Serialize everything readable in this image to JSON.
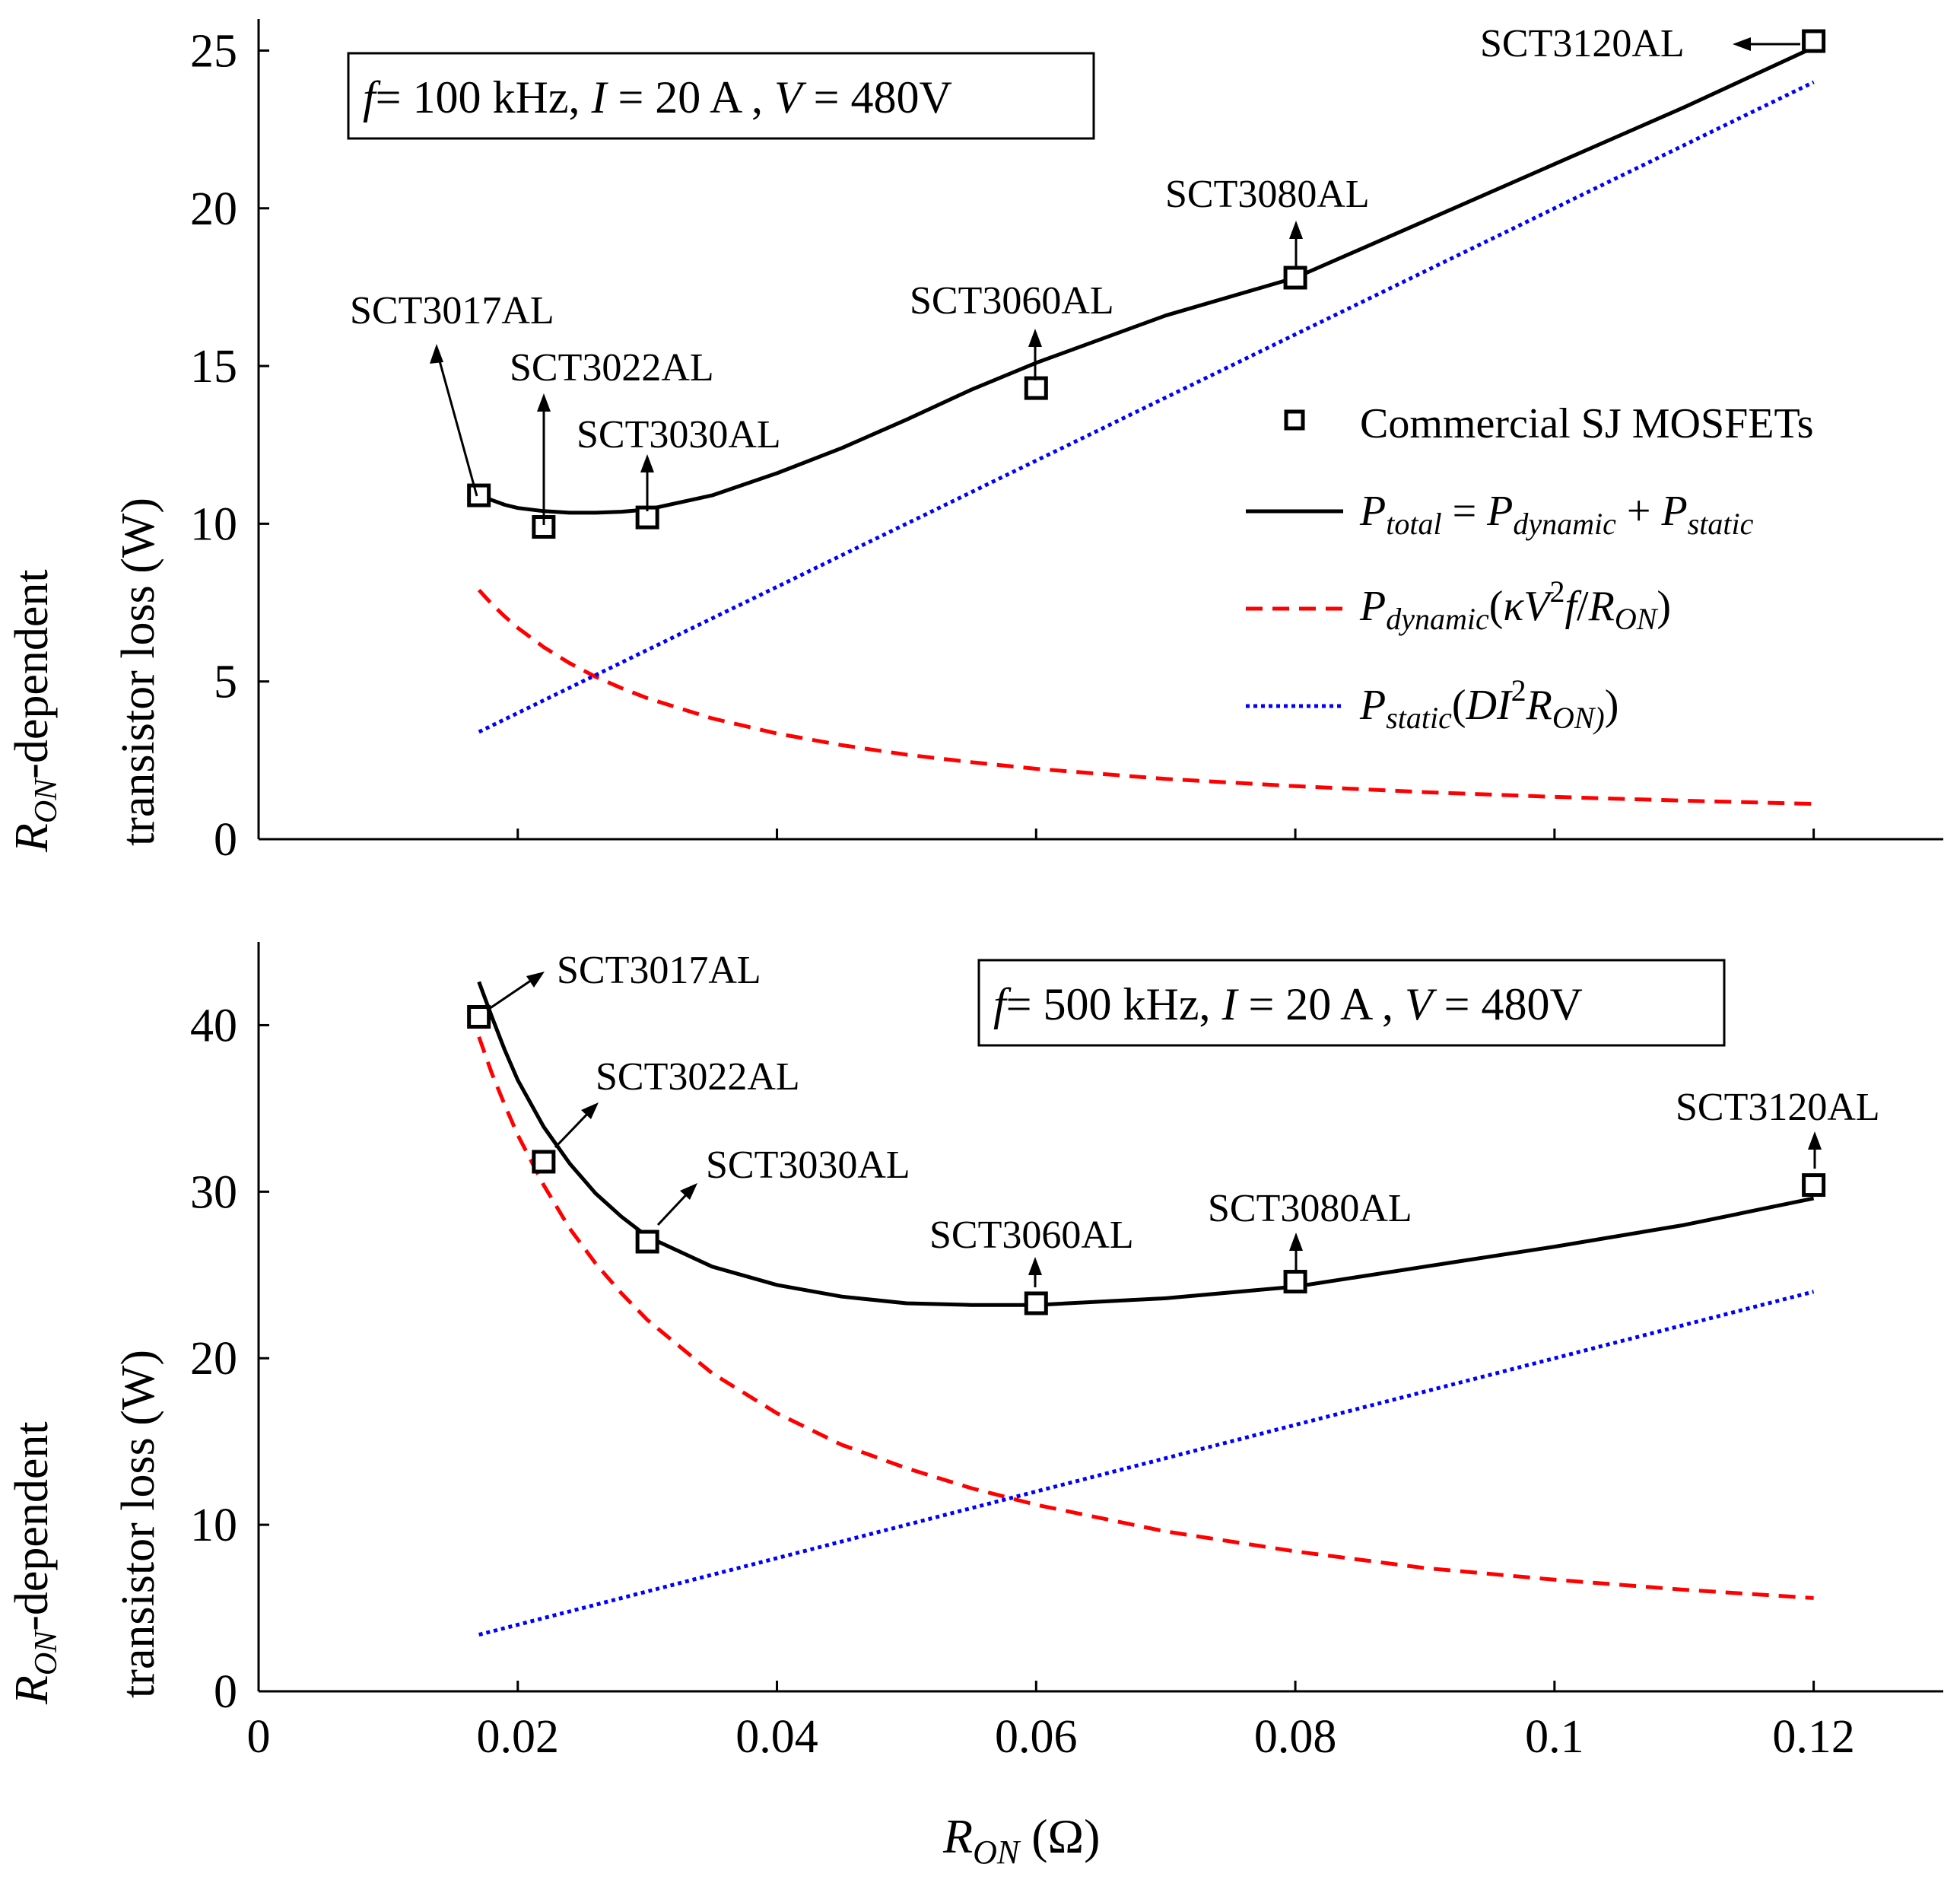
{
  "chart_data": [
    {
      "type": "line",
      "panel": "top",
      "conditions": {
        "f_sym": "f",
        "f_val": "= 100 kHz, ",
        "i_sym": "I",
        "i_val": " = 20 A , ",
        "v_sym": "V",
        "v_val": " = 480V"
      },
      "ylabel": {
        "main": "R",
        "sub": "ON",
        "rest": "-dependent",
        "line2": "transistor loss (W)"
      },
      "xlim": [
        0,
        0.13
      ],
      "ylim": [
        0,
        26
      ],
      "yticks": [
        0,
        5,
        10,
        15,
        20,
        25
      ],
      "xticks": [
        0,
        0.02,
        0.04,
        0.06,
        0.08,
        0.1,
        0.12
      ],
      "series": [
        {
          "name": "P_total = P_dynamic + P_static",
          "x": [
            0.017,
            0.018,
            0.019,
            0.02,
            0.022,
            0.024,
            0.026,
            0.028,
            0.03,
            0.035,
            0.04,
            0.045,
            0.05,
            0.055,
            0.06,
            0.07,
            0.08,
            0.09,
            0.1,
            0.11,
            0.12
          ],
          "y": [
            10.9,
            10.75,
            10.6,
            10.5,
            10.4,
            10.35,
            10.35,
            10.38,
            10.45,
            10.9,
            11.6,
            12.4,
            13.3,
            14.25,
            15.1,
            16.6,
            17.8,
            19.6,
            21.4,
            23.2,
            25.1
          ]
        },
        {
          "name": "P_dynamic",
          "x": [
            0.017,
            0.018,
            0.019,
            0.02,
            0.022,
            0.024,
            0.026,
            0.028,
            0.03,
            0.035,
            0.04,
            0.045,
            0.05,
            0.055,
            0.06,
            0.07,
            0.08,
            0.09,
            0.1,
            0.11,
            0.12
          ],
          "y": [
            7.9,
            7.45,
            7.06,
            6.7,
            6.09,
            5.58,
            5.15,
            4.79,
            4.47,
            3.83,
            3.35,
            2.98,
            2.68,
            2.44,
            2.23,
            1.91,
            1.68,
            1.49,
            1.34,
            1.22,
            1.12
          ]
        },
        {
          "name": "P_static",
          "x": [
            0.017,
            0.12
          ],
          "y": [
            3.4,
            24.0
          ]
        }
      ],
      "markers": [
        {
          "label": "SCT3017AL",
          "x": 0.017,
          "y": 10.9
        },
        {
          "label": "SCT3022AL",
          "x": 0.022,
          "y": 9.9
        },
        {
          "label": "SCT3030AL",
          "x": 0.03,
          "y": 10.2
        },
        {
          "label": "SCT3060AL",
          "x": 0.06,
          "y": 14.3
        },
        {
          "label": "SCT3080AL",
          "x": 0.08,
          "y": 17.8
        },
        {
          "label": "SCT3120AL",
          "x": 0.12,
          "y": 25.3
        }
      ]
    },
    {
      "type": "line",
      "panel": "bottom",
      "conditions": {
        "f_sym": "f",
        "f_val": "= 500 kHz, ",
        "i_sym": "I",
        "i_val": " = 20 A , ",
        "v_sym": "V",
        "v_val": " = 480V"
      },
      "ylabel": {
        "main": "R",
        "sub": "ON",
        "rest": "-dependent",
        "line2": "transistor loss (W)"
      },
      "xlabel": {
        "main": "R",
        "sub": "ON",
        "rest": " (Ω)"
      },
      "xlim": [
        0,
        0.13
      ],
      "ylim": [
        0,
        45
      ],
      "yticks": [
        0,
        10,
        20,
        30,
        40
      ],
      "xticks": [
        0,
        0.02,
        0.04,
        0.06,
        0.08,
        0.1,
        0.12
      ],
      "xticklabels": [
        "0",
        "0.02",
        "0.04",
        "0.06",
        "0.08",
        "0.1",
        "0.12"
      ],
      "series": [
        {
          "name": "P_total = P_dynamic + P_static",
          "x": [
            0.017,
            0.018,
            0.019,
            0.02,
            0.022,
            0.024,
            0.026,
            0.028,
            0.03,
            0.035,
            0.04,
            0.045,
            0.05,
            0.055,
            0.06,
            0.07,
            0.08,
            0.09,
            0.1,
            0.11,
            0.12
          ],
          "y": [
            42.6,
            40.5,
            38.5,
            36.7,
            33.9,
            31.7,
            29.9,
            28.5,
            27.3,
            25.5,
            24.4,
            23.7,
            23.3,
            23.2,
            23.2,
            23.6,
            24.3,
            25.5,
            26.7,
            28.0,
            29.6
          ]
        },
        {
          "name": "P_dynamic",
          "x": [
            0.017,
            0.018,
            0.019,
            0.02,
            0.022,
            0.024,
            0.026,
            0.028,
            0.03,
            0.035,
            0.04,
            0.045,
            0.05,
            0.055,
            0.06,
            0.07,
            0.08,
            0.09,
            0.1,
            0.11,
            0.12
          ],
          "y": [
            39.3,
            37.1,
            35.2,
            33.4,
            30.4,
            27.8,
            25.7,
            23.9,
            22.3,
            19.1,
            16.7,
            14.8,
            13.4,
            12.2,
            11.2,
            9.6,
            8.4,
            7.4,
            6.7,
            6.1,
            5.6
          ]
        },
        {
          "name": "P_static",
          "x": [
            0.017,
            0.12
          ],
          "y": [
            3.4,
            24.0
          ]
        }
      ],
      "markers": [
        {
          "label": "SCT3017AL",
          "x": 0.017,
          "y": 40.5
        },
        {
          "label": "SCT3022AL",
          "x": 0.022,
          "y": 31.8
        },
        {
          "label": "SCT3030AL",
          "x": 0.03,
          "y": 27.0
        },
        {
          "label": "SCT3060AL",
          "x": 0.06,
          "y": 23.3
        },
        {
          "label": "SCT3080AL",
          "x": 0.08,
          "y": 24.6
        },
        {
          "label": "SCT3120AL",
          "x": 0.12,
          "y": 30.4
        }
      ]
    }
  ],
  "legend": {
    "items": [
      {
        "key": "markers",
        "label": "Commercial SJ MOSFETs"
      },
      {
        "key": "total",
        "P": "P",
        "sub1": "total",
        "eq": " = ",
        "P2": "P",
        "sub2": "dynamic",
        "plus": " + ",
        "P3": "P",
        "sub3": "static"
      },
      {
        "key": "dynamic",
        "P": "P",
        "sub": "dynamic",
        "open": "(",
        "kappa": "κV",
        "sup": "2",
        "f": "f",
        "slash": "/",
        "R": "R",
        "rsub": "ON",
        "close": ")"
      },
      {
        "key": "static",
        "P": "P",
        "sub": "static",
        "open": "(",
        "DI": "DI",
        "sup": "2",
        "R": "R",
        "rsub": "ON)",
        "close": ")"
      }
    ]
  },
  "colors": {
    "total": "#000000",
    "dynamic": "#ff0000",
    "static": "#0000ff",
    "axis": "#000000"
  }
}
